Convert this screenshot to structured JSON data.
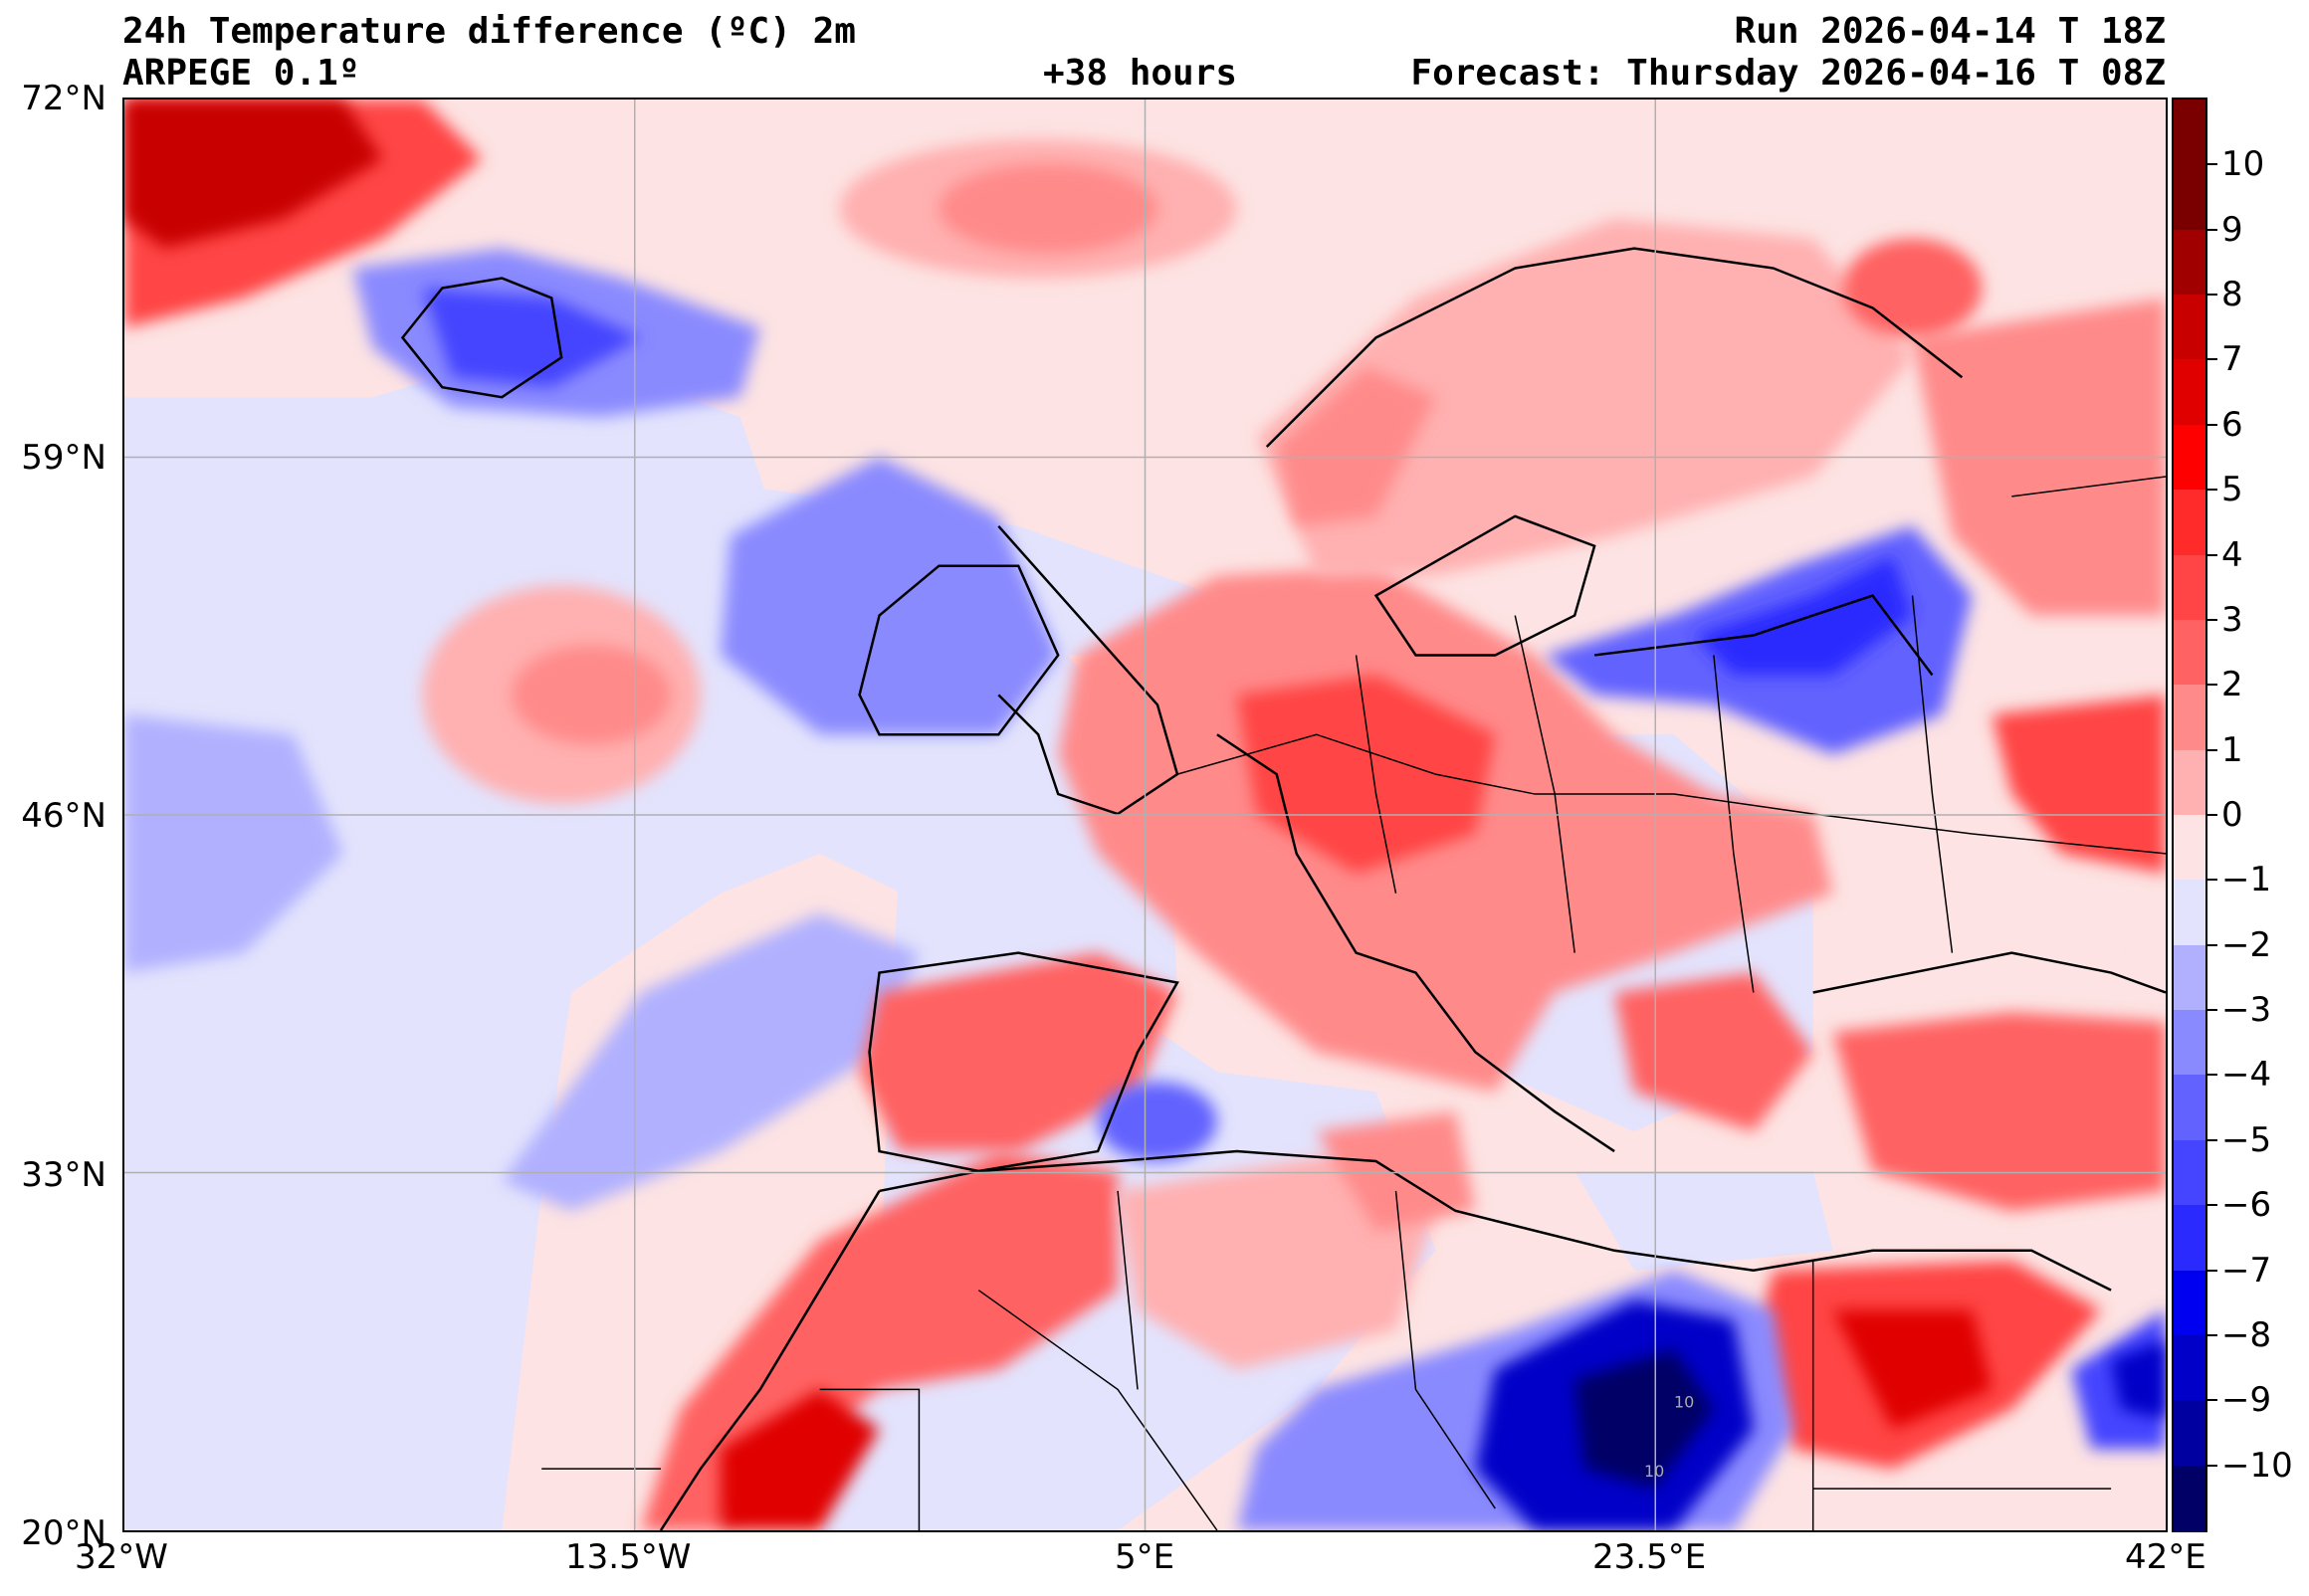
{
  "header": {
    "title": "24h Temperature difference (ºC) 2m",
    "model": "ARPEGE 0.1º",
    "lead": "+38 hours",
    "run": "Run 2026-04-14 T 18Z",
    "forecast": "Forecast: Thursday 2026-04-16 T 08Z"
  },
  "axes": {
    "lat_labels": [
      "72°N",
      "59°N",
      "46°N",
      "33°N",
      "20°N"
    ],
    "lon_labels": [
      "32°W",
      "13.5°W",
      "5°E",
      "23.5°E",
      "42°E"
    ],
    "lat_range": [
      20,
      72
    ],
    "lon_range": [
      -32,
      42
    ]
  },
  "colorbar": {
    "labels": [
      "10",
      "9",
      "8",
      "7",
      "6",
      "5",
      "4",
      "3",
      "2",
      "1",
      "0",
      "−1",
      "−2",
      "−3",
      "−4",
      "−5",
      "−6",
      "−7",
      "−8",
      "−9",
      "−10"
    ],
    "range": [
      -11,
      11
    ],
    "colors": [
      "#7a0000",
      "#a00000",
      "#c80000",
      "#e00000",
      "#ff0000",
      "#ff2a2a",
      "#ff4545",
      "#ff6262",
      "#ff8a8a",
      "#ffb0b0",
      "#fde3e3",
      "#e3e3fd",
      "#b0b0ff",
      "#8a8aff",
      "#6262ff",
      "#4545ff",
      "#2a2aff",
      "#0000f0",
      "#0000c8",
      "#0000a0",
      "#000066"
    ]
  },
  "contour_labels": [
    "10",
    "10"
  ]
}
